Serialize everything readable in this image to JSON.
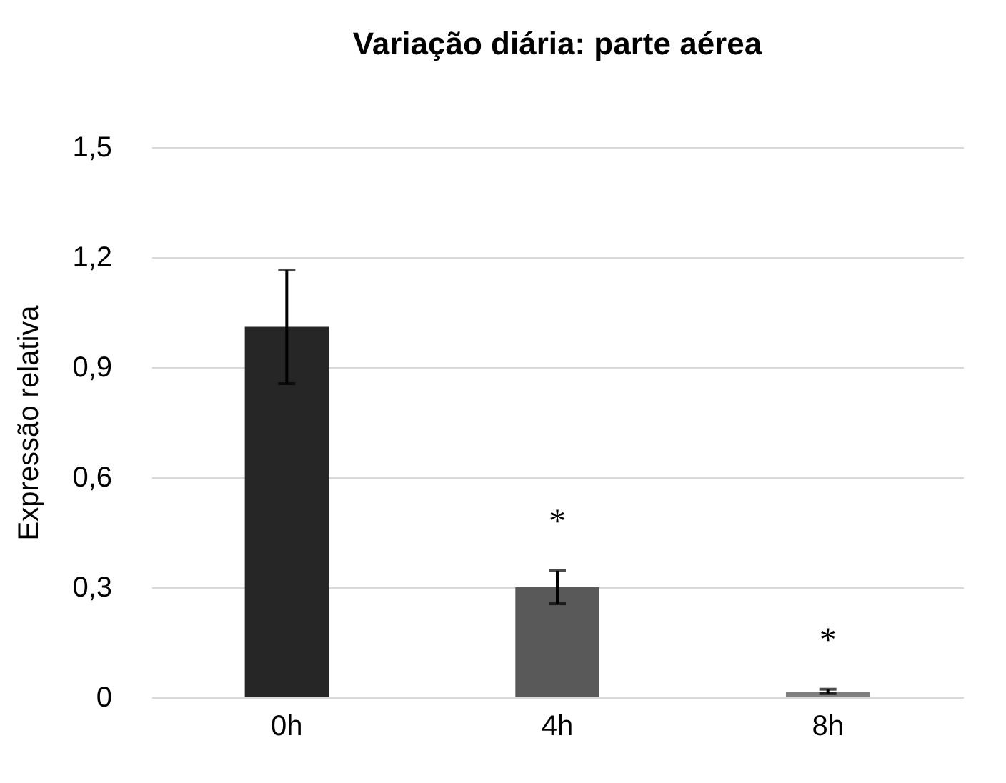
{
  "chart_data": {
    "type": "bar",
    "title": "Variação diária: parte aérea",
    "ylabel": "Expressão relativa",
    "categories": [
      "0h",
      "4h",
      "8h"
    ],
    "values": [
      1.01,
      0.3,
      0.015
    ],
    "colors": [
      "#262626",
      "#595959",
      "#7f7f7f"
    ],
    "errors": [
      [
        0.855,
        1.165
      ],
      [
        0.255,
        0.345
      ],
      [
        0.01,
        0.022
      ]
    ],
    "annotations": [
      "*",
      "*"
    ],
    "ylim": [
      0,
      1.5
    ],
    "yticks": [
      {
        "value": 0,
        "label": "0"
      },
      {
        "value": 0.3,
        "label": "0,3"
      },
      {
        "value": 0.6,
        "label": "0,6"
      },
      {
        "value": 0.9,
        "label": "0,9"
      },
      {
        "value": 1.2,
        "label": "1,2"
      },
      {
        "value": 1.5,
        "label": "1,5"
      }
    ],
    "grid": "y"
  }
}
